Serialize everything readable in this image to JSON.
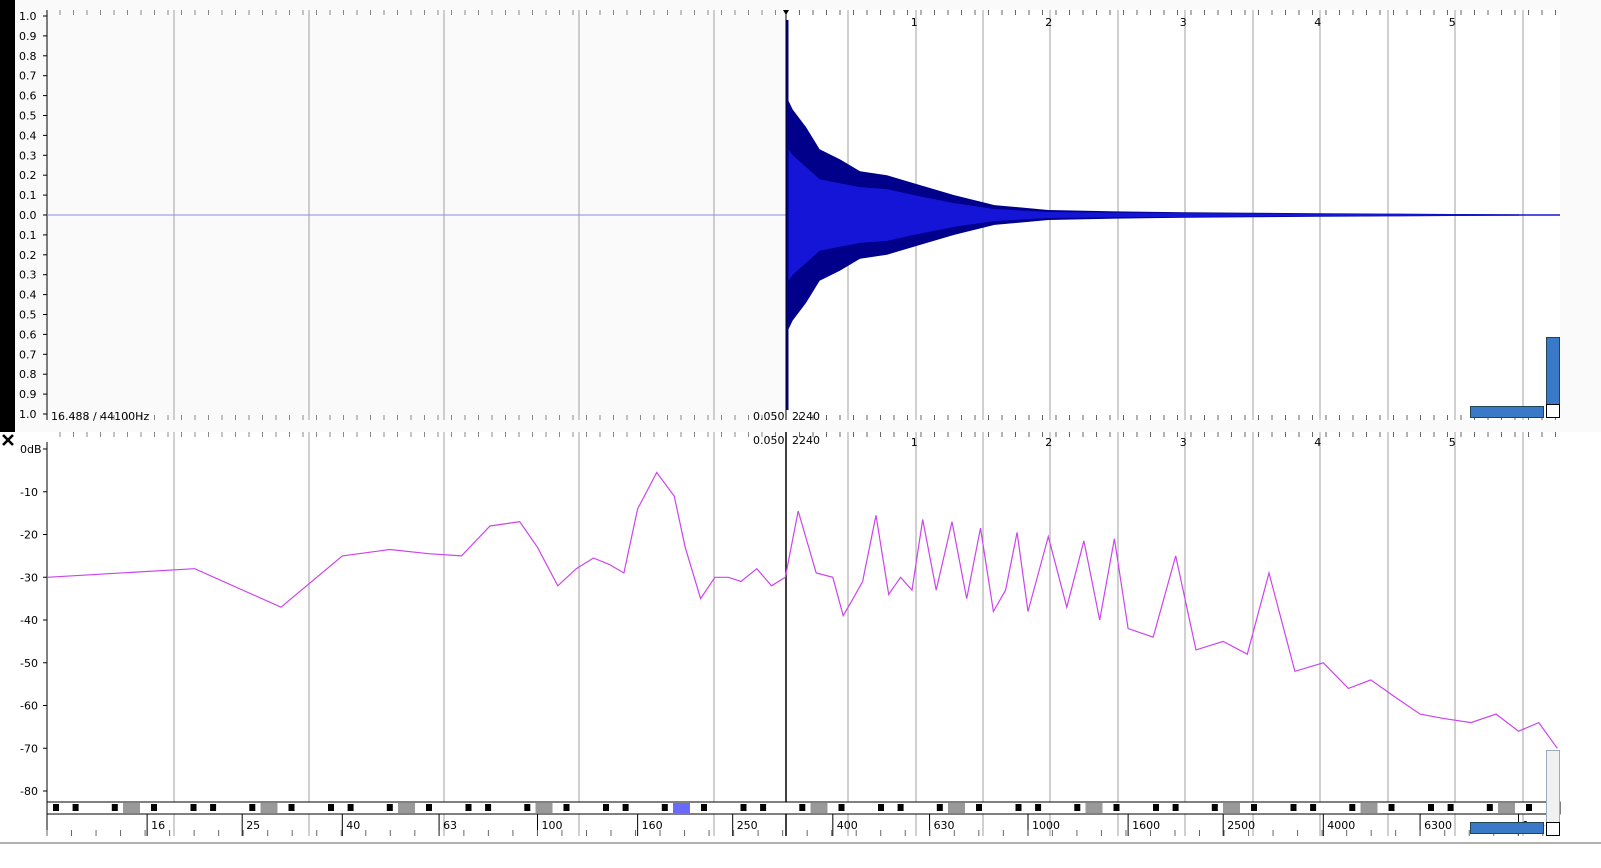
{
  "wave_panel": {
    "close_icon": "close-icon",
    "status_left": "16.488 / 44100Hz",
    "cursor_time": "0.050",
    "cursor_sample": "2240",
    "amplitude_ticks": [
      "1.0",
      "0.9",
      "0.8",
      "0.7",
      "0.6",
      "0.5",
      "0.4",
      "0.3",
      "0.2",
      "0.1",
      "0.0",
      "0.1",
      "0.2",
      "0.3",
      "0.4",
      "0.5",
      "0.6",
      "0.7",
      "0.8",
      "0.9",
      "1.0"
    ],
    "time_ticks": [
      "1",
      "2",
      "3",
      "4",
      "5"
    ]
  },
  "spectrum_panel": {
    "close_icon": "close-icon",
    "cursor_time": "0.050",
    "cursor_sample": "2240",
    "db_ticks": [
      "0dB",
      "-10",
      "-20",
      "-30",
      "-40",
      "-50",
      "-60",
      "-70",
      "-80"
    ],
    "time_ticks": [
      "1",
      "2",
      "3",
      "4",
      "5"
    ],
    "freq_ticks": [
      "16",
      "25",
      "40",
      "63",
      "100",
      "160",
      "250",
      "400",
      "630",
      "1000",
      "1600",
      "2500",
      "4000",
      "6300",
      "1e+04"
    ]
  },
  "colors": {
    "waveform_dark": "#00008b",
    "waveform_light": "#1515d8",
    "spectrum_line": "#cc44ee",
    "grid": "#a0a0a0",
    "keyboard_highlight": "#6a6aff"
  },
  "chart_data": [
    {
      "type": "area",
      "title": "",
      "xlabel": "",
      "ylabel": "",
      "ylim": [
        -1.0,
        1.0
      ],
      "x_unit": "seconds",
      "series": [
        {
          "x": [
            0.0,
            0.05,
            0.1,
            0.2,
            0.3,
            0.45,
            0.6,
            0.8,
            1.0,
            1.3,
            1.6,
            2.0,
            2.5,
            3.0,
            3.5,
            4.0,
            4.5,
            5.0,
            5.5
          ],
          "envelope": [
            0.0,
            0.6,
            0.53,
            0.44,
            0.33,
            0.28,
            0.22,
            0.2,
            0.16,
            0.1,
            0.05,
            0.025,
            0.018,
            0.014,
            0.011,
            0.009,
            0.007,
            0.005,
            0.003
          ],
          "inner_envelope": [
            0.0,
            0.35,
            0.3,
            0.24,
            0.18,
            0.16,
            0.14,
            0.13,
            0.1,
            0.06,
            0.03,
            0.015,
            0.012,
            0.01,
            0.008,
            0.006,
            0.005,
            0.004,
            0.002
          ]
        }
      ],
      "grid": true
    },
    {
      "type": "line",
      "title": "",
      "xlabel": "",
      "ylabel": "dB",
      "x_scale": "log",
      "xlim": [
        10,
        12000
      ],
      "ylim": [
        -83,
        3
      ],
      "series": [
        {
          "x": [
            10,
            20,
            30,
            40,
            50,
            60,
            70,
            80,
            92,
            100,
            110,
            120,
            130,
            140,
            150,
            160,
            175,
            190,
            200,
            215,
            230,
            245,
            260,
            280,
            300,
            320,
            340,
            370,
            400,
            420,
            440,
            460,
            490,
            520,
            550,
            580,
            610,
            650,
            700,
            750,
            800,
            850,
            900,
            950,
            1000,
            1100,
            1200,
            1300,
            1400,
            1500,
            1600,
            1800,
            2000,
            2200,
            2500,
            2800,
            3100,
            3500,
            4000,
            4500,
            5000,
            5600,
            6300,
            7000,
            8000,
            9000,
            10000,
            11000,
            12000
          ],
          "y": [
            -30,
            -28,
            -37,
            -25,
            -23.5,
            -24.5,
            -25,
            -18,
            -17,
            -23,
            -32,
            -28,
            -25.5,
            -27,
            -29,
            -14,
            -5.5,
            -11,
            -23,
            -35,
            -30,
            -30,
            -31,
            -28,
            -32,
            -30,
            -14.5,
            -29,
            -30,
            -39,
            -35,
            -31,
            -15.5,
            -34,
            -30,
            -33,
            -16.5,
            -33,
            -17,
            -35,
            -18.5,
            -38,
            -33,
            -19.5,
            -38,
            -20.5,
            -37,
            -21.5,
            -40,
            -21,
            -42,
            -44,
            -25,
            -47,
            -45,
            -48,
            -29,
            -52,
            -50,
            -56,
            -54,
            -58,
            -62,
            -63,
            -64,
            -62,
            -66,
            -64,
            -70
          ]
        }
      ],
      "grid": true
    }
  ]
}
